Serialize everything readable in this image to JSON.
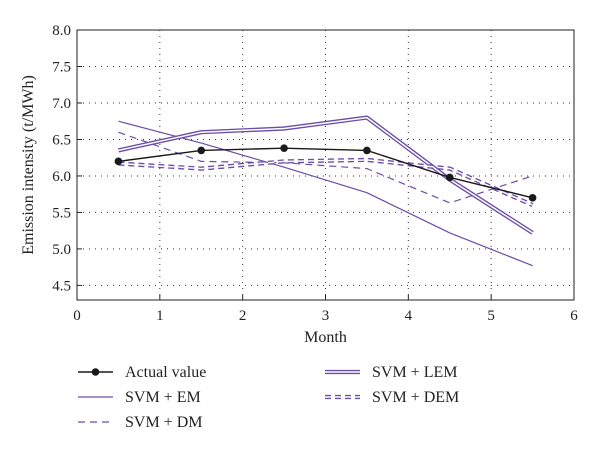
{
  "chart_data": {
    "type": "line",
    "title": "",
    "xlabel": "Month",
    "ylabel": "Emission intensity (t/MWh)",
    "xlim": [
      0,
      6
    ],
    "ylim": [
      4.3,
      8.0
    ],
    "xticks": [
      0,
      1,
      2,
      3,
      4,
      5,
      6
    ],
    "yticks": [
      4.5,
      5.0,
      5.5,
      6.0,
      6.5,
      7.0,
      7.5,
      8.0
    ],
    "xtick_labels": [
      "0",
      "1",
      "2",
      "3",
      "4",
      "5",
      "6"
    ],
    "ytick_labels": [
      "4.5",
      "5.0",
      "5.5",
      "6.0",
      "6.5",
      "7.0",
      "7.5",
      "8.0"
    ],
    "grid": "dotted",
    "legend_position": "bottom",
    "x": [
      0.5,
      1.5,
      2.5,
      3.5,
      4.5,
      5.5
    ],
    "series": [
      {
        "name": "Actual value",
        "values": [
          6.2,
          6.35,
          6.38,
          6.35,
          5.98,
          5.7
        ],
        "color": "#1a1a1a",
        "style": "solid-marker"
      },
      {
        "name": "SVM + EM",
        "values": [
          6.75,
          6.45,
          6.12,
          5.77,
          5.22,
          4.77
        ],
        "color": "#6a4ea8",
        "style": "solid"
      },
      {
        "name": "SVM + DM",
        "values": [
          6.6,
          6.2,
          6.18,
          6.1,
          5.63,
          6.0
        ],
        "color": "#6a4ea8",
        "style": "dashed"
      },
      {
        "name": "SVM + LEM",
        "values": [
          6.35,
          6.6,
          6.65,
          6.8,
          5.95,
          5.22
        ],
        "color": "#6a4ea8",
        "style": "double"
      },
      {
        "name": "SVM + DEM",
        "values": [
          6.17,
          6.1,
          6.2,
          6.22,
          6.1,
          5.6
        ],
        "color": "#6a4ea8",
        "style": "double-dashed"
      }
    ]
  }
}
